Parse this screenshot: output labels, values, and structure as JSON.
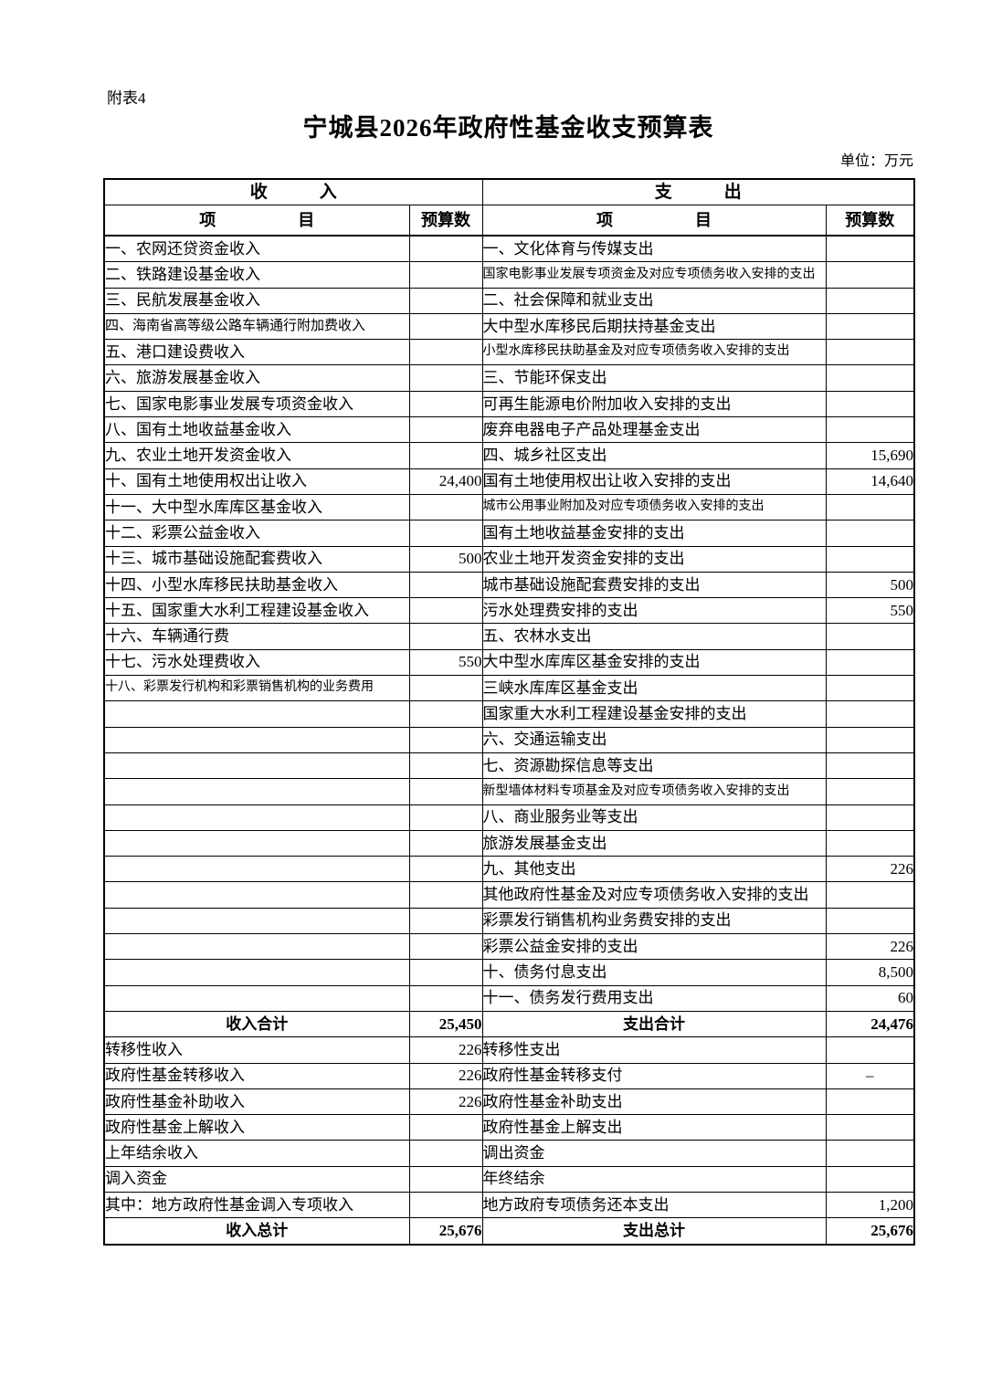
{
  "page": {
    "annotation": "附表4",
    "title": "宁城县2026年政府性基金收支预算表",
    "unit": "单位：万元"
  },
  "table": {
    "income_header": "收　　　入",
    "expenditure_header": "支　　　出",
    "item_header": "项　　　　　目",
    "budget_header": "预算数",
    "rows": [
      {
        "l": "一、农网还贷资金收入",
        "lv": "",
        "li": 0,
        "lc": "n",
        "r": "一、文化体育与传媒支出",
        "rv": "",
        "ri": 0,
        "rc": "n",
        "total": false
      },
      {
        "l": "二、铁路建设基金收入",
        "lv": "",
        "li": 0,
        "lc": "n",
        "r": "国家电影事业发展专项资金及对应专项债务收入安排的支出",
        "rv": "",
        "ri": 2,
        "rc": "s",
        "total": false
      },
      {
        "l": "三、民航发展基金收入",
        "lv": "",
        "li": 0,
        "lc": "n",
        "r": "二、社会保障和就业支出",
        "rv": "",
        "ri": 0,
        "rc": "n",
        "total": false
      },
      {
        "l": "四、海南省高等级公路车辆通行附加费收入",
        "lv": "",
        "li": 0,
        "lc": "m",
        "r": "大中型水库移民后期扶持基金支出",
        "rv": "",
        "ri": 3,
        "rc": "n",
        "total": false
      },
      {
        "l": "五、港口建设费收入",
        "lv": "",
        "li": 0,
        "lc": "n",
        "r": "小型水库移民扶助基金及对应专项债务收入安排的支出",
        "rv": "",
        "ri": 2,
        "rc": "s",
        "total": false
      },
      {
        "l": "六、旅游发展基金收入",
        "lv": "",
        "li": 0,
        "lc": "n",
        "r": "三、节能环保支出",
        "rv": "",
        "ri": 0,
        "rc": "n",
        "total": false
      },
      {
        "l": "七、国家电影事业发展专项资金收入",
        "lv": "",
        "li": 0,
        "lc": "n",
        "r": "可再生能源电价附加收入安排的支出",
        "rv": "",
        "ri": 3,
        "rc": "n",
        "total": false
      },
      {
        "l": "八、国有土地收益基金收入",
        "lv": "",
        "li": 0,
        "lc": "n",
        "r": "废弃电器电子产品处理基金支出",
        "rv": "",
        "ri": 3,
        "rc": "n",
        "total": false
      },
      {
        "l": "九、农业土地开发资金收入",
        "lv": "",
        "li": 0,
        "lc": "n",
        "r": "四、城乡社区支出",
        "rv": "15,690",
        "ri": 0,
        "rc": "n",
        "total": false
      },
      {
        "l": "十、国有土地使用权出让收入",
        "lv": "24,400",
        "li": 0,
        "lc": "n",
        "r": "国有土地使用权出让收入安排的支出",
        "rv": "14,640",
        "ri": 3,
        "rc": "n",
        "total": false
      },
      {
        "l": "十一、大中型水库库区基金收入",
        "lv": "",
        "li": 0,
        "lc": "n",
        "r": "城市公用事业附加及对应专项债务收入安排的支出",
        "rv": "",
        "ri": 2,
        "rc": "s",
        "total": false
      },
      {
        "l": "十二、彩票公益金收入",
        "lv": "",
        "li": 0,
        "lc": "n",
        "r": "国有土地收益基金安排的支出",
        "rv": "",
        "ri": 3,
        "rc": "n",
        "total": false
      },
      {
        "l": "十三、城市基础设施配套费收入",
        "lv": "500",
        "li": 0,
        "lc": "n",
        "r": "农业土地开发资金安排的支出",
        "rv": "",
        "ri": 3,
        "rc": "n",
        "total": false
      },
      {
        "l": "十四、小型水库移民扶助基金收入",
        "lv": "",
        "li": 0,
        "lc": "n",
        "r": "城市基础设施配套费安排的支出",
        "rv": "500",
        "ri": 3,
        "rc": "n",
        "total": false
      },
      {
        "l": "十五、国家重大水利工程建设基金收入",
        "lv": "",
        "li": 0,
        "lc": "n",
        "r": "污水处理费安排的支出",
        "rv": "550",
        "ri": 3,
        "rc": "n",
        "total": false
      },
      {
        "l": "十六、车辆通行费",
        "lv": "",
        "li": 0,
        "lc": "n",
        "r": "五、农林水支出",
        "rv": "",
        "ri": 0,
        "rc": "n",
        "total": false
      },
      {
        "l": "十七、污水处理费收入",
        "lv": "550",
        "li": 0,
        "lc": "n",
        "r": "大中型水库库区基金安排的支出",
        "rv": "",
        "ri": 3,
        "rc": "n",
        "total": false
      },
      {
        "l": "十八、彩票发行机构和彩票销售机构的业务费用",
        "lv": "",
        "li": 0,
        "lc": "s",
        "r": "三峡水库库区基金支出",
        "rv": "",
        "ri": 3,
        "rc": "n",
        "total": false
      },
      {
        "l": "",
        "lv": "",
        "li": 0,
        "lc": "n",
        "r": "国家重大水利工程建设基金安排的支出",
        "rv": "",
        "ri": 3,
        "rc": "n",
        "total": false
      },
      {
        "l": "",
        "lv": "",
        "li": 0,
        "lc": "n",
        "r": "六、交通运输支出",
        "rv": "",
        "ri": 0,
        "rc": "n",
        "total": false
      },
      {
        "l": "",
        "lv": "",
        "li": 0,
        "lc": "n",
        "r": "七、资源勘探信息等支出",
        "rv": "",
        "ri": 0,
        "rc": "n",
        "total": false
      },
      {
        "l": "",
        "lv": "",
        "li": 0,
        "lc": "n",
        "r": "新型墙体材料专项基金及对应专项债务收入安排的支出",
        "rv": "",
        "ri": 2,
        "rc": "s",
        "total": false
      },
      {
        "l": "",
        "lv": "",
        "li": 0,
        "lc": "n",
        "r": "八、商业服务业等支出",
        "rv": "",
        "ri": 0,
        "rc": "n",
        "total": false
      },
      {
        "l": "",
        "lv": "",
        "li": 0,
        "lc": "n",
        "r": "旅游发展基金支出",
        "rv": "",
        "ri": 3,
        "rc": "n",
        "total": false
      },
      {
        "l": "",
        "lv": "",
        "li": 0,
        "lc": "n",
        "r": "九、其他支出",
        "rv": "226",
        "ri": 0,
        "rc": "n",
        "total": false
      },
      {
        "l": "",
        "lv": "",
        "li": 0,
        "lc": "n",
        "r": "其他政府性基金及对应专项债务收入安排的支出",
        "rv": "",
        "ri": 3,
        "rc": "n",
        "total": false
      },
      {
        "l": "",
        "lv": "",
        "li": 0,
        "lc": "n",
        "r": "彩票发行销售机构业务费安排的支出",
        "rv": "",
        "ri": 3,
        "rc": "n",
        "total": false
      },
      {
        "l": "",
        "lv": "",
        "li": 0,
        "lc": "n",
        "r": "彩票公益金安排的支出",
        "rv": "226",
        "ri": 3,
        "rc": "n",
        "total": false
      },
      {
        "l": "",
        "lv": "",
        "li": 0,
        "lc": "n",
        "r": "十、债务付息支出",
        "rv": "8,500",
        "ri": 0,
        "rc": "n",
        "total": false
      },
      {
        "l": "",
        "lv": "",
        "li": 0,
        "lc": "n",
        "r": "十一、债务发行费用支出",
        "rv": "60",
        "ri": 0,
        "rc": "n",
        "total": false
      },
      {
        "l": "收入合计",
        "lv": "25,450",
        "li": 0,
        "lc": "n",
        "r": "支出合计",
        "rv": "24,476",
        "ri": 0,
        "rc": "n",
        "total": true
      },
      {
        "l": "转移性收入",
        "lv": "226",
        "li": 0,
        "lc": "n",
        "r": "转移性支出",
        "rv": "",
        "ri": 0,
        "rc": "n",
        "total": false
      },
      {
        "l": "政府性基金转移收入",
        "lv": "226",
        "li": 1,
        "lc": "n",
        "r": "政府性基金转移支付",
        "rv": "–",
        "ri": 1,
        "rc": "n",
        "total": false
      },
      {
        "l": "政府性基金补助收入",
        "lv": "226",
        "li": 3,
        "lc": "n",
        "r": "政府性基金补助支出",
        "rv": "",
        "ri": 3,
        "rc": "n",
        "total": false
      },
      {
        "l": "政府性基金上解收入",
        "lv": "",
        "li": 3,
        "lc": "n",
        "r": "政府性基金上解支出",
        "rv": "",
        "ri": 3,
        "rc": "n",
        "total": false
      },
      {
        "l": "上年结余收入",
        "lv": "",
        "li": 1,
        "lc": "n",
        "r": "调出资金",
        "rv": "",
        "ri": 1,
        "rc": "n",
        "total": false
      },
      {
        "l": "调入资金",
        "lv": "",
        "li": 1,
        "lc": "n",
        "r": "年终结余",
        "rv": "",
        "ri": 1,
        "rc": "n",
        "total": false
      },
      {
        "l": "其中：地方政府性基金调入专项收入",
        "lv": "",
        "li": 3,
        "lc": "n",
        "r": "地方政府专项债务还本支出",
        "rv": "1,200",
        "ri": 0,
        "rc": "n",
        "total": false
      },
      {
        "l": "收入总计",
        "lv": "25,676",
        "li": 0,
        "lc": "n",
        "r": "支出总计",
        "rv": "25,676",
        "ri": 0,
        "rc": "n",
        "total": true
      }
    ]
  }
}
